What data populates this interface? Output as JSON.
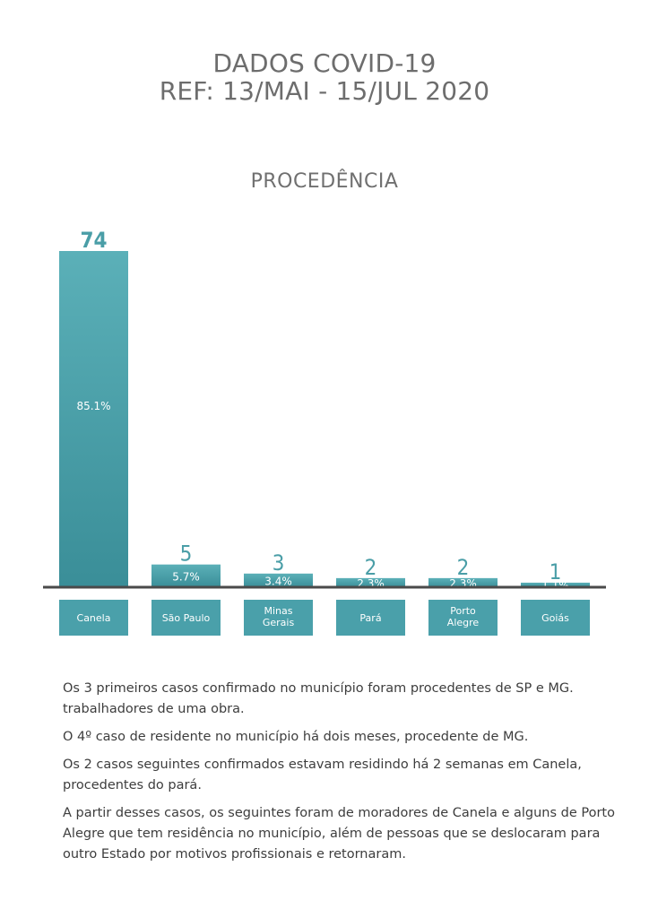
{
  "header": {
    "line1": "DADOS COVID-19",
    "line2": "REF: 13/MAI - 15/JUL 2020"
  },
  "chart_data": {
    "type": "bar",
    "title": "PROCEDÊNCIA",
    "categories": [
      [
        "Canela"
      ],
      [
        "São Paulo"
      ],
      [
        "Minas",
        "Gerais"
      ],
      [
        "Pará"
      ],
      [
        "Porto",
        "Alegre"
      ],
      [
        "Goiás"
      ]
    ],
    "values": [
      74,
      5,
      3,
      2,
      2,
      1
    ],
    "value_labels": [
      "74",
      "5",
      "3",
      "2",
      "2",
      "1"
    ],
    "percent_labels": [
      "85.1%",
      "5.7%",
      "3.4%",
      "2.3%",
      "2.3%",
      "1.1%"
    ],
    "ylim": [
      0,
      74
    ],
    "grid": false,
    "colors": {
      "bar_top": "#5bb0b8",
      "bar_bottom": "#3a8e98",
      "label_box": "#4aa0aa",
      "value_text": "#4a9ea7",
      "baseline": "#4a4a4a"
    }
  },
  "notes": [
    "Os 3 primeiros casos confirmado no município foram procedentes de SP e MG. trabalhadores de uma obra.",
    "O 4º caso de residente no município há dois meses, procedente de MG.",
    "Os 2 casos seguintes confirmados estavam residindo há 2 semanas em Canela, procedentes do pará.",
    "A partir desses casos, os seguintes foram de moradores de Canela e alguns de Porto Alegre que tem residência no município, além de pessoas que se deslocaram  para outro Estado por motivos profissionais e retornaram."
  ]
}
